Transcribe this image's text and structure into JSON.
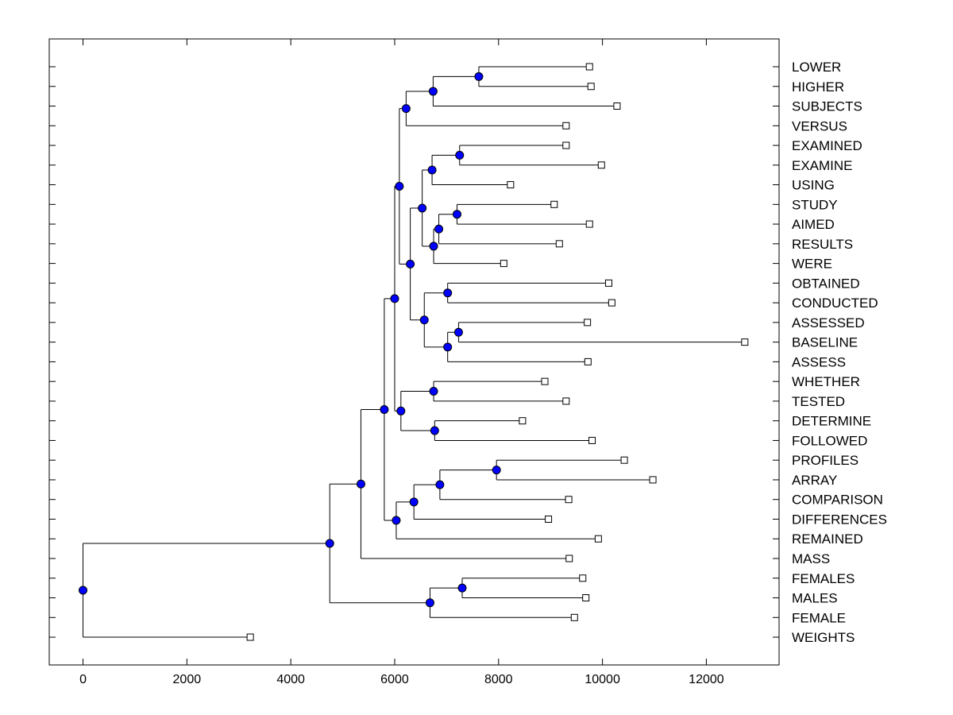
{
  "chart_data": {
    "type": "dendrogram",
    "title": "",
    "xlabel": "",
    "ylabel": "",
    "xlim": [
      -650,
      13400
    ],
    "xticks": [
      0,
      2000,
      4000,
      6000,
      8000,
      10000,
      12000
    ],
    "xtick_labels": [
      "0",
      "2000",
      "4000",
      "6000",
      "8000",
      "10000",
      "12000"
    ],
    "grid": false,
    "colors": {
      "node": "#0000ff",
      "line": "#000000",
      "leaf_fill": "#ffffff"
    },
    "leaves": [
      {
        "label": "LOWER",
        "value": 9750
      },
      {
        "label": "HIGHER",
        "value": 9780
      },
      {
        "label": "SUBJECTS",
        "value": 10280
      },
      {
        "label": "VERSUS",
        "value": 9300
      },
      {
        "label": "EXAMINED",
        "value": 9300
      },
      {
        "label": "EXAMINE",
        "value": 9980
      },
      {
        "label": "USING",
        "value": 8230
      },
      {
        "label": "STUDY",
        "value": 9070
      },
      {
        "label": "AIMED",
        "value": 9750
      },
      {
        "label": "RESULTS",
        "value": 9170
      },
      {
        "label": "WERE",
        "value": 8100
      },
      {
        "label": "OBTAINED",
        "value": 10120
      },
      {
        "label": "CONDUCTED",
        "value": 10180
      },
      {
        "label": "ASSESSED",
        "value": 9710
      },
      {
        "label": "BASELINE",
        "value": 12740
      },
      {
        "label": "ASSESS",
        "value": 9720
      },
      {
        "label": "WHETHER",
        "value": 8890
      },
      {
        "label": "TESTED",
        "value": 9300
      },
      {
        "label": "DETERMINE",
        "value": 8460
      },
      {
        "label": "FOLLOWED",
        "value": 9800
      },
      {
        "label": "PROFILES",
        "value": 10420
      },
      {
        "label": "ARRAY",
        "value": 10970
      },
      {
        "label": "COMPARISON",
        "value": 9350
      },
      {
        "label": "DIFFERENCES",
        "value": 8960
      },
      {
        "label": "REMAINED",
        "value": 9920
      },
      {
        "label": "MASS",
        "value": 9360
      },
      {
        "label": "FEMALES",
        "value": 9620
      },
      {
        "label": "MALES",
        "value": 9680
      },
      {
        "label": "FEMALE",
        "value": 9460
      },
      {
        "label": "WEIGHTS",
        "value": 3220
      }
    ],
    "merges": [
      {
        "id": "n_lh",
        "value": 7620,
        "children": [
          "LOWER",
          "HIGHER"
        ]
      },
      {
        "id": "n_lhs",
        "value": 6740,
        "children": [
          "n_lh",
          "SUBJECTS"
        ]
      },
      {
        "id": "n_top4",
        "value": 6220,
        "children": [
          "n_lhs",
          "VERSUS"
        ]
      },
      {
        "id": "n_ee",
        "value": 7250,
        "children": [
          "EXAMINED",
          "EXAMINE"
        ]
      },
      {
        "id": "n_eeu",
        "value": 6720,
        "children": [
          "n_ee",
          "USING"
        ]
      },
      {
        "id": "n_sa",
        "value": 7200,
        "children": [
          "STUDY",
          "AIMED"
        ]
      },
      {
        "id": "n_sar",
        "value": 6850,
        "children": [
          "n_sa",
          "RESULTS"
        ]
      },
      {
        "id": "n_sarw",
        "value": 6750,
        "children": [
          "n_sar",
          "WERE"
        ]
      },
      {
        "id": "n_exam_study",
        "value": 6530,
        "children": [
          "n_eeu",
          "n_sarw"
        ]
      },
      {
        "id": "n_oc",
        "value": 7020,
        "children": [
          "OBTAINED",
          "CONDUCTED"
        ]
      },
      {
        "id": "n_ab",
        "value": 7230,
        "children": [
          "ASSESSED",
          "BASELINE"
        ]
      },
      {
        "id": "n_aba",
        "value": 7020,
        "children": [
          "n_ab",
          "ASSESS"
        ]
      },
      {
        "id": "n_ocab",
        "value": 6570,
        "children": [
          "n_oc",
          "n_aba"
        ]
      },
      {
        "id": "n_mid",
        "value": 6300,
        "children": [
          "n_exam_study",
          "n_ocab"
        ]
      },
      {
        "id": "n_upper",
        "value": 6090,
        "children": [
          "n_top4",
          "n_mid"
        ]
      },
      {
        "id": "n_wt",
        "value": 6750,
        "children": [
          "WHETHER",
          "TESTED"
        ]
      },
      {
        "id": "n_df",
        "value": 6770,
        "children": [
          "DETERMINE",
          "FOLLOWED"
        ]
      },
      {
        "id": "n_wtdf",
        "value": 6120,
        "children": [
          "n_wt",
          "n_df"
        ]
      },
      {
        "id": "n_bigup",
        "value": 6000,
        "children": [
          "n_upper",
          "n_wtdf"
        ]
      },
      {
        "id": "n_pa",
        "value": 7960,
        "children": [
          "PROFILES",
          "ARRAY"
        ]
      },
      {
        "id": "n_pac",
        "value": 6870,
        "children": [
          "n_pa",
          "COMPARISON"
        ]
      },
      {
        "id": "n_pacd",
        "value": 6370,
        "children": [
          "n_pac",
          "DIFFERENCES"
        ]
      },
      {
        "id": "n_pacdr",
        "value": 6030,
        "children": [
          "n_pacd",
          "REMAINED"
        ]
      },
      {
        "id": "n_main",
        "value": 5800,
        "children": [
          "n_bigup",
          "n_pacdr"
        ]
      },
      {
        "id": "n_mass",
        "value": 5350,
        "children": [
          "n_main",
          "MASS"
        ]
      },
      {
        "id": "n_fm",
        "value": 7300,
        "children": [
          "FEMALES",
          "MALES"
        ]
      },
      {
        "id": "n_fmf",
        "value": 6680,
        "children": [
          "n_fm",
          "FEMALE"
        ]
      },
      {
        "id": "n_all",
        "value": 4750,
        "children": [
          "n_mass",
          "n_fmf"
        ]
      },
      {
        "id": "n_root",
        "value": 0,
        "children": [
          "n_all",
          "WEIGHTS"
        ]
      }
    ]
  }
}
